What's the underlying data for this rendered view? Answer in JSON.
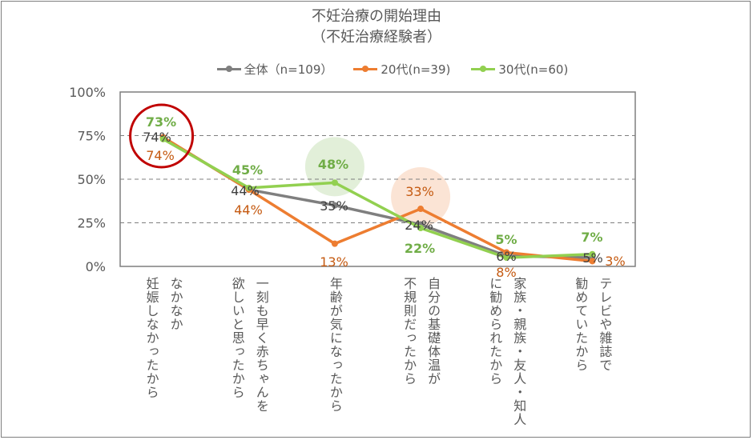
{
  "chart_data": {
    "type": "line",
    "title": "不妊治療の開始理由",
    "subtitle": "（不妊治療経験者）",
    "categories": [
      "なかなか\n妊娠しなかったから",
      "一刻も早く赤ちゃんを\n欲しいと思ったから",
      "年齢が気になったから",
      "自分の基礎体温が\n不規則だったから",
      "家族・親族・友人・知人\nに勧められたから",
      "テレビや雑誌で\n勧めていたから"
    ],
    "yticks": [
      "0%",
      "25%",
      "50%",
      "75%",
      "100%"
    ],
    "ylim": [
      0,
      100
    ],
    "grid": "dashed horizontal",
    "legend_position": "top",
    "series": [
      {
        "name": "全体（n=109）",
        "color": "#7f7f7f",
        "values": [
          74,
          44,
          35,
          24,
          6,
          5
        ],
        "labels": [
          "74%",
          "44%",
          "35%",
          "24%",
          "6%",
          "5%"
        ]
      },
      {
        "name": "20代(n=39)",
        "color": "#ed7d31",
        "values": [
          74,
          44,
          13,
          33,
          8,
          3
        ],
        "labels": [
          "74%",
          "44%",
          "13%",
          "33%",
          "8%",
          "3%"
        ]
      },
      {
        "name": "30代(n=60)",
        "color": "#92d050",
        "values": [
          73,
          45,
          48,
          22,
          5,
          7
        ],
        "labels": [
          "73%",
          "45%",
          "48%",
          "22%",
          "5%",
          "7%"
        ]
      }
    ],
    "highlights": [
      {
        "category": 0,
        "style": "red ring",
        "color": "#c00000"
      },
      {
        "category": 2,
        "series": "30代(n=60)",
        "style": "shaded circle",
        "color": "#e2efd9"
      },
      {
        "category": 3,
        "series": "20代(n=39)",
        "style": "shaded circle",
        "color": "#fbe4d5"
      }
    ]
  }
}
